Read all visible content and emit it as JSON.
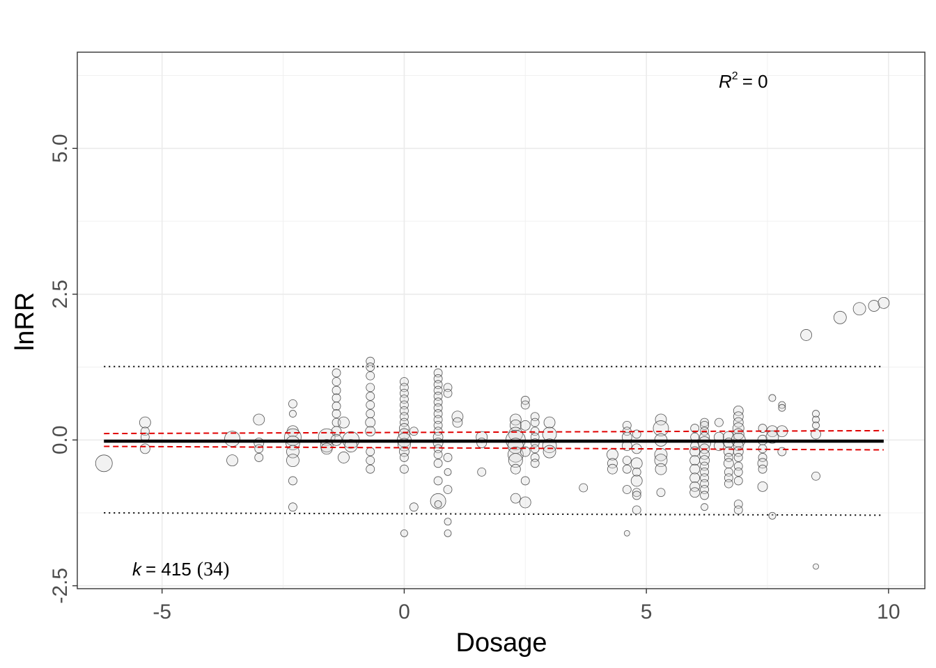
{
  "chart_data": {
    "type": "scatter",
    "title": "",
    "xlabel": "Dosage",
    "ylabel": "lnRR",
    "xlim": [
      -6.75,
      10.75
    ],
    "ylim": [
      -2.55,
      6.65
    ],
    "x_ticks": [
      -5,
      0,
      5,
      10
    ],
    "x_tick_labels": [
      "-5",
      "0",
      "5",
      "10"
    ],
    "y_ticks": [
      -2.5,
      0,
      2.5,
      5
    ],
    "y_tick_labels": [
      "-2.5",
      "0.0",
      "2.5",
      "5.0"
    ],
    "grid": true,
    "annotations": {
      "r2_label": {
        "symbol": "R",
        "superscript": "2",
        "value": "= 0"
      },
      "k_label": {
        "symbol": "k",
        "value": "= 415",
        "group": "(34)"
      }
    },
    "fit": {
      "x": [
        -6.2,
        9.9
      ],
      "y": [
        -0.02,
        -0.02
      ],
      "ci_lower": [
        -0.11,
        -0.17
      ],
      "ci_upper": [
        0.11,
        0.16
      ],
      "pi_lower": [
        -1.25,
        -1.29
      ],
      "pi_upper": [
        1.26,
        1.26
      ],
      "colors": {
        "fit": "#000000",
        "ci": "#e00000",
        "pi": "#000000"
      }
    },
    "points": [
      {
        "x": -6.2,
        "y": -0.4,
        "w": 12
      },
      {
        "x": -5.35,
        "y": 0.3,
        "w": 8
      },
      {
        "x": -5.35,
        "y": 0.15,
        "w": 6
      },
      {
        "x": -5.35,
        "y": 0.05,
        "w": 6
      },
      {
        "x": -5.35,
        "y": -0.15,
        "w": 7
      },
      {
        "x": -3.55,
        "y": 0.02,
        "w": 11
      },
      {
        "x": -3.55,
        "y": -0.35,
        "w": 8
      },
      {
        "x": -3.0,
        "y": 0.35,
        "w": 8
      },
      {
        "x": -3.0,
        "y": -0.05,
        "w": 7
      },
      {
        "x": -3.0,
        "y": -0.15,
        "w": 6
      },
      {
        "x": -3.0,
        "y": -0.3,
        "w": 6
      },
      {
        "x": -2.3,
        "y": 0.62,
        "w": 6
      },
      {
        "x": -2.3,
        "y": 0.45,
        "w": 5
      },
      {
        "x": -2.3,
        "y": 0.15,
        "w": 8
      },
      {
        "x": -2.3,
        "y": 0.05,
        "w": 12
      },
      {
        "x": -2.3,
        "y": -0.05,
        "w": 10
      },
      {
        "x": -2.3,
        "y": -0.2,
        "w": 9
      },
      {
        "x": -2.3,
        "y": -0.35,
        "w": 9
      },
      {
        "x": -2.3,
        "y": -0.7,
        "w": 6
      },
      {
        "x": -2.3,
        "y": -1.15,
        "w": 6
      },
      {
        "x": -1.6,
        "y": 0.05,
        "w": 12
      },
      {
        "x": -1.6,
        "y": -0.1,
        "w": 9
      },
      {
        "x": -1.6,
        "y": -0.15,
        "w": 8
      },
      {
        "x": -1.4,
        "y": 1.15,
        "w": 6
      },
      {
        "x": -1.4,
        "y": 1.0,
        "w": 6
      },
      {
        "x": -1.4,
        "y": 0.85,
        "w": 6
      },
      {
        "x": -1.4,
        "y": 0.72,
        "w": 6
      },
      {
        "x": -1.4,
        "y": 0.58,
        "w": 6
      },
      {
        "x": -1.4,
        "y": 0.45,
        "w": 6
      },
      {
        "x": -1.4,
        "y": 0.3,
        "w": 6
      },
      {
        "x": -1.4,
        "y": 0.15,
        "w": 7
      },
      {
        "x": -1.4,
        "y": 0.0,
        "w": 8
      },
      {
        "x": -1.25,
        "y": 0.3,
        "w": 8
      },
      {
        "x": -1.25,
        "y": -0.3,
        "w": 8
      },
      {
        "x": -1.1,
        "y": 0.0,
        "w": 12
      },
      {
        "x": -1.1,
        "y": -0.1,
        "w": 9
      },
      {
        "x": -0.7,
        "y": 1.35,
        "w": 6
      },
      {
        "x": -0.7,
        "y": 1.25,
        "w": 6
      },
      {
        "x": -0.7,
        "y": 1.1,
        "w": 6
      },
      {
        "x": -0.7,
        "y": 0.9,
        "w": 6
      },
      {
        "x": -0.7,
        "y": 0.75,
        "w": 6
      },
      {
        "x": -0.7,
        "y": 0.6,
        "w": 6
      },
      {
        "x": -0.7,
        "y": 0.45,
        "w": 6
      },
      {
        "x": -0.7,
        "y": 0.3,
        "w": 7
      },
      {
        "x": -0.7,
        "y": 0.15,
        "w": 7
      },
      {
        "x": -0.7,
        "y": -0.2,
        "w": 6
      },
      {
        "x": -0.7,
        "y": -0.35,
        "w": 6
      },
      {
        "x": -0.7,
        "y": -0.5,
        "w": 6
      },
      {
        "x": 0.0,
        "y": 1.0,
        "w": 6
      },
      {
        "x": 0.0,
        "y": 0.9,
        "w": 6
      },
      {
        "x": 0.0,
        "y": 0.8,
        "w": 6
      },
      {
        "x": 0.0,
        "y": 0.7,
        "w": 6
      },
      {
        "x": 0.0,
        "y": 0.6,
        "w": 6
      },
      {
        "x": 0.0,
        "y": 0.5,
        "w": 6
      },
      {
        "x": 0.0,
        "y": 0.4,
        "w": 6
      },
      {
        "x": 0.0,
        "y": 0.3,
        "w": 6
      },
      {
        "x": 0.0,
        "y": 0.2,
        "w": 7
      },
      {
        "x": 0.0,
        "y": 0.1,
        "w": 8
      },
      {
        "x": 0.0,
        "y": 0.0,
        "w": 10
      },
      {
        "x": 0.0,
        "y": -0.08,
        "w": 9
      },
      {
        "x": 0.0,
        "y": -0.2,
        "w": 7
      },
      {
        "x": 0.0,
        "y": -0.3,
        "w": 6
      },
      {
        "x": 0.0,
        "y": -0.5,
        "w": 6
      },
      {
        "x": 0.0,
        "y": -1.6,
        "w": 5
      },
      {
        "x": 0.2,
        "y": 0.15,
        "w": 6
      },
      {
        "x": 0.2,
        "y": -1.15,
        "w": 6
      },
      {
        "x": 0.7,
        "y": 1.15,
        "w": 6
      },
      {
        "x": 0.7,
        "y": 1.05,
        "w": 6
      },
      {
        "x": 0.7,
        "y": 0.95,
        "w": 6
      },
      {
        "x": 0.7,
        "y": 0.85,
        "w": 6
      },
      {
        "x": 0.7,
        "y": 0.75,
        "w": 6
      },
      {
        "x": 0.7,
        "y": 0.65,
        "w": 6
      },
      {
        "x": 0.7,
        "y": 0.55,
        "w": 6
      },
      {
        "x": 0.7,
        "y": 0.45,
        "w": 6
      },
      {
        "x": 0.7,
        "y": 0.35,
        "w": 6
      },
      {
        "x": 0.7,
        "y": 0.25,
        "w": 6
      },
      {
        "x": 0.7,
        "y": 0.15,
        "w": 6
      },
      {
        "x": 0.7,
        "y": 0.05,
        "w": 7
      },
      {
        "x": 0.7,
        "y": -0.05,
        "w": 7
      },
      {
        "x": 0.7,
        "y": -0.15,
        "w": 6
      },
      {
        "x": 0.7,
        "y": -0.25,
        "w": 6
      },
      {
        "x": 0.7,
        "y": -0.4,
        "w": 6
      },
      {
        "x": 0.7,
        "y": -0.7,
        "w": 6
      },
      {
        "x": 0.7,
        "y": -1.05,
        "w": 11
      },
      {
        "x": 0.7,
        "y": -1.1,
        "w": 5
      },
      {
        "x": 0.9,
        "y": 0.9,
        "w": 6
      },
      {
        "x": 0.9,
        "y": 0.8,
        "w": 6
      },
      {
        "x": 0.9,
        "y": -0.3,
        "w": 6
      },
      {
        "x": 0.9,
        "y": -0.55,
        "w": 5
      },
      {
        "x": 0.9,
        "y": -0.85,
        "w": 6
      },
      {
        "x": 0.9,
        "y": -1.4,
        "w": 5
      },
      {
        "x": 0.9,
        "y": -1.6,
        "w": 5
      },
      {
        "x": 1.1,
        "y": 0.4,
        "w": 8
      },
      {
        "x": 1.1,
        "y": 0.3,
        "w": 7
      },
      {
        "x": 1.6,
        "y": 0.05,
        "w": 8
      },
      {
        "x": 1.6,
        "y": -0.05,
        "w": 7
      },
      {
        "x": 1.6,
        "y": -0.55,
        "w": 6
      },
      {
        "x": 2.3,
        "y": 0.35,
        "w": 8
      },
      {
        "x": 2.3,
        "y": 0.25,
        "w": 8
      },
      {
        "x": 2.3,
        "y": 0.1,
        "w": 10
      },
      {
        "x": 2.3,
        "y": 0.0,
        "w": 14
      },
      {
        "x": 2.3,
        "y": -0.1,
        "w": 11
      },
      {
        "x": 2.3,
        "y": -0.25,
        "w": 11
      },
      {
        "x": 2.3,
        "y": -0.35,
        "w": 10
      },
      {
        "x": 2.3,
        "y": -0.5,
        "w": 7
      },
      {
        "x": 2.3,
        "y": -1.0,
        "w": 7
      },
      {
        "x": 2.5,
        "y": 0.68,
        "w": 6
      },
      {
        "x": 2.5,
        "y": 0.6,
        "w": 6
      },
      {
        "x": 2.5,
        "y": 0.25,
        "w": 7
      },
      {
        "x": 2.5,
        "y": -0.2,
        "w": 7
      },
      {
        "x": 2.5,
        "y": -0.7,
        "w": 6
      },
      {
        "x": 2.5,
        "y": -1.07,
        "w": 8
      },
      {
        "x": 2.7,
        "y": 0.4,
        "w": 6
      },
      {
        "x": 2.7,
        "y": 0.3,
        "w": 6
      },
      {
        "x": 2.7,
        "y": 0.15,
        "w": 6
      },
      {
        "x": 2.7,
        "y": 0.05,
        "w": 6
      },
      {
        "x": 2.7,
        "y": -0.05,
        "w": 6
      },
      {
        "x": 2.7,
        "y": -0.15,
        "w": 6
      },
      {
        "x": 2.7,
        "y": -0.3,
        "w": 6
      },
      {
        "x": 2.7,
        "y": -0.4,
        "w": 6
      },
      {
        "x": 3.0,
        "y": 0.3,
        "w": 8
      },
      {
        "x": 3.0,
        "y": 0.1,
        "w": 10
      },
      {
        "x": 3.0,
        "y": -0.1,
        "w": 10
      },
      {
        "x": 3.0,
        "y": -0.2,
        "w": 9
      },
      {
        "x": 3.7,
        "y": -0.82,
        "w": 6
      },
      {
        "x": 4.3,
        "y": -0.25,
        "w": 8
      },
      {
        "x": 4.3,
        "y": -0.4,
        "w": 7
      },
      {
        "x": 4.3,
        "y": -0.5,
        "w": 7
      },
      {
        "x": 4.6,
        "y": 0.25,
        "w": 6
      },
      {
        "x": 4.6,
        "y": 0.15,
        "w": 6
      },
      {
        "x": 4.6,
        "y": 0.05,
        "w": 7
      },
      {
        "x": 4.6,
        "y": -0.1,
        "w": 7
      },
      {
        "x": 4.6,
        "y": -0.35,
        "w": 6
      },
      {
        "x": 4.6,
        "y": -0.5,
        "w": 6
      },
      {
        "x": 4.6,
        "y": -0.85,
        "w": 6
      },
      {
        "x": 4.6,
        "y": -1.6,
        "w": 4
      },
      {
        "x": 4.8,
        "y": 0.1,
        "w": 6
      },
      {
        "x": 4.8,
        "y": -0.15,
        "w": 7
      },
      {
        "x": 4.8,
        "y": -0.4,
        "w": 8
      },
      {
        "x": 4.8,
        "y": -0.55,
        "w": 6
      },
      {
        "x": 4.8,
        "y": -0.9,
        "w": 6
      },
      {
        "x": 4.8,
        "y": -0.95,
        "w": 6
      },
      {
        "x": 4.8,
        "y": -1.2,
        "w": 6
      },
      {
        "x": 4.8,
        "y": -0.7,
        "w": 8
      },
      {
        "x": 5.3,
        "y": 0.35,
        "w": 8
      },
      {
        "x": 5.3,
        "y": 0.2,
        "w": 11
      },
      {
        "x": 5.3,
        "y": 0.0,
        "w": 9
      },
      {
        "x": 5.3,
        "y": -0.25,
        "w": 9
      },
      {
        "x": 5.3,
        "y": -0.35,
        "w": 9
      },
      {
        "x": 5.3,
        "y": -0.5,
        "w": 8
      },
      {
        "x": 5.3,
        "y": -0.9,
        "w": 6
      },
      {
        "x": 6.0,
        "y": 0.2,
        "w": 6
      },
      {
        "x": 6.0,
        "y": 0.05,
        "w": 6
      },
      {
        "x": 6.0,
        "y": -0.1,
        "w": 6
      },
      {
        "x": 6.0,
        "y": -0.2,
        "w": 7
      },
      {
        "x": 6.0,
        "y": -0.35,
        "w": 7
      },
      {
        "x": 6.0,
        "y": -0.5,
        "w": 7
      },
      {
        "x": 6.0,
        "y": -0.65,
        "w": 7
      },
      {
        "x": 6.0,
        "y": -0.8,
        "w": 7
      },
      {
        "x": 6.0,
        "y": -0.9,
        "w": 7
      },
      {
        "x": 6.2,
        "y": 0.3,
        "w": 6
      },
      {
        "x": 6.2,
        "y": 0.25,
        "w": 6
      },
      {
        "x": 6.2,
        "y": 0.15,
        "w": 6
      },
      {
        "x": 6.2,
        "y": 0.05,
        "w": 7
      },
      {
        "x": 6.2,
        "y": -0.05,
        "w": 9
      },
      {
        "x": 6.2,
        "y": -0.15,
        "w": 7
      },
      {
        "x": 6.2,
        "y": -0.25,
        "w": 7
      },
      {
        "x": 6.2,
        "y": -0.35,
        "w": 7
      },
      {
        "x": 6.2,
        "y": -0.45,
        "w": 6
      },
      {
        "x": 6.2,
        "y": -0.55,
        "w": 6
      },
      {
        "x": 6.2,
        "y": -0.65,
        "w": 6
      },
      {
        "x": 6.2,
        "y": -0.75,
        "w": 6
      },
      {
        "x": 6.2,
        "y": -0.85,
        "w": 6
      },
      {
        "x": 6.2,
        "y": -0.95,
        "w": 6
      },
      {
        "x": 6.2,
        "y": -1.15,
        "w": 5
      },
      {
        "x": 6.5,
        "y": 0.3,
        "w": 6
      },
      {
        "x": 6.5,
        "y": 0.05,
        "w": 7
      },
      {
        "x": 6.5,
        "y": -0.1,
        "w": 7
      },
      {
        "x": 6.7,
        "y": 0.05,
        "w": 8
      },
      {
        "x": 6.7,
        "y": -0.05,
        "w": 7
      },
      {
        "x": 6.7,
        "y": -0.2,
        "w": 7
      },
      {
        "x": 6.7,
        "y": -0.3,
        "w": 6
      },
      {
        "x": 6.7,
        "y": -0.4,
        "w": 7
      },
      {
        "x": 6.7,
        "y": -0.55,
        "w": 6
      },
      {
        "x": 6.7,
        "y": -0.65,
        "w": 6
      },
      {
        "x": 6.7,
        "y": -0.75,
        "w": 6
      },
      {
        "x": 6.9,
        "y": 0.5,
        "w": 7
      },
      {
        "x": 6.9,
        "y": 0.4,
        "w": 7
      },
      {
        "x": 6.9,
        "y": 0.3,
        "w": 7
      },
      {
        "x": 6.9,
        "y": 0.2,
        "w": 8
      },
      {
        "x": 6.9,
        "y": 0.1,
        "w": 8
      },
      {
        "x": 6.9,
        "y": 0.0,
        "w": 10
      },
      {
        "x": 6.9,
        "y": -0.1,
        "w": 7
      },
      {
        "x": 6.9,
        "y": -0.2,
        "w": 7
      },
      {
        "x": 6.9,
        "y": -0.3,
        "w": 6
      },
      {
        "x": 6.9,
        "y": -0.45,
        "w": 6
      },
      {
        "x": 6.9,
        "y": -0.55,
        "w": 6
      },
      {
        "x": 6.9,
        "y": -0.7,
        "w": 6
      },
      {
        "x": 6.9,
        "y": -1.1,
        "w": 6
      },
      {
        "x": 6.9,
        "y": -1.2,
        "w": 6
      },
      {
        "x": 7.4,
        "y": 0.2,
        "w": 6
      },
      {
        "x": 7.4,
        "y": 0.0,
        "w": 7
      },
      {
        "x": 7.4,
        "y": -0.15,
        "w": 6
      },
      {
        "x": 7.4,
        "y": -0.3,
        "w": 6
      },
      {
        "x": 7.4,
        "y": -0.4,
        "w": 7
      },
      {
        "x": 7.4,
        "y": -0.5,
        "w": 6
      },
      {
        "x": 7.4,
        "y": -0.8,
        "w": 7
      },
      {
        "x": 7.6,
        "y": 0.72,
        "w": 5
      },
      {
        "x": 7.6,
        "y": 0.15,
        "w": 8
      },
      {
        "x": 7.6,
        "y": 0.05,
        "w": 9
      },
      {
        "x": 7.6,
        "y": -1.3,
        "w": 5
      },
      {
        "x": 7.8,
        "y": 0.6,
        "w": 5
      },
      {
        "x": 7.8,
        "y": 0.55,
        "w": 5
      },
      {
        "x": 7.8,
        "y": 0.15,
        "w": 8
      },
      {
        "x": 7.8,
        "y": -0.2,
        "w": 6
      },
      {
        "x": 8.3,
        "y": 1.8,
        "w": 8
      },
      {
        "x": 8.5,
        "y": 0.45,
        "w": 5
      },
      {
        "x": 8.5,
        "y": 0.35,
        "w": 5
      },
      {
        "x": 8.5,
        "y": 0.25,
        "w": 5
      },
      {
        "x": 8.5,
        "y": 0.1,
        "w": 7
      },
      {
        "x": 8.5,
        "y": -0.62,
        "w": 6
      },
      {
        "x": 8.5,
        "y": -2.17,
        "w": 4
      },
      {
        "x": 9.0,
        "y": 2.1,
        "w": 9
      },
      {
        "x": 9.4,
        "y": 2.25,
        "w": 9
      },
      {
        "x": 9.7,
        "y": 2.3,
        "w": 8
      },
      {
        "x": 9.9,
        "y": 2.35,
        "w": 8
      }
    ]
  }
}
